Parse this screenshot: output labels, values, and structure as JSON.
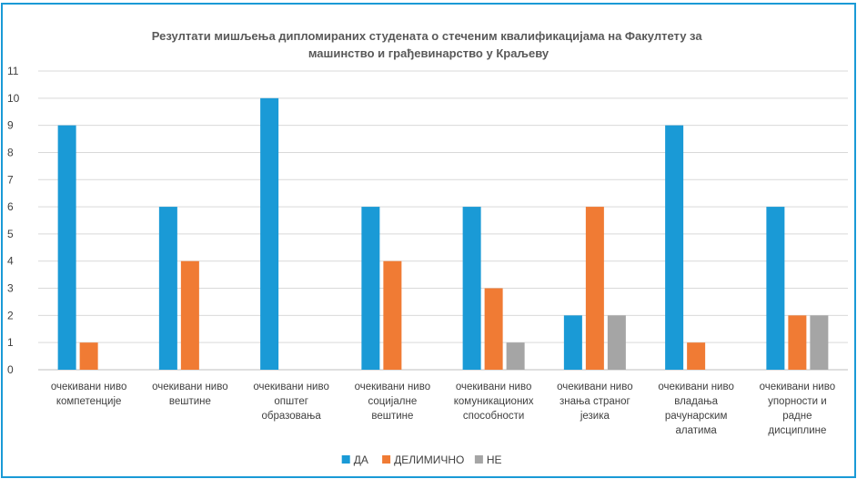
{
  "chart_data": {
    "type": "bar",
    "title": "Резултати мишљења дипломираних студената о стеченим квалификацијама на Факултету за машинство и грађевинарство у Краљеву",
    "title_lines": [
      "Резултати мишљења дипломираних студената о стеченим квалификацијама на Факултету за",
      "машинство и грађевинарство у Краљеву"
    ],
    "categories": [
      [
        "очекивани ниво",
        "компетенције"
      ],
      [
        "очекивани ниво",
        "вештине"
      ],
      [
        "очекивани ниво",
        "општег",
        "образовања"
      ],
      [
        "очекивани ниво",
        "социјалне",
        "вештине"
      ],
      [
        "очекивани ниво",
        "комуникационих",
        "способности"
      ],
      [
        "очекивани ниво",
        "знања страног",
        "језика"
      ],
      [
        "очекивани ниво",
        "владања",
        "рачунарским",
        "алатима"
      ],
      [
        "очекивани ниво",
        "упорности и",
        "радне",
        "дисциплине"
      ]
    ],
    "series": [
      {
        "name": "ДА",
        "color": "#1a9ad6",
        "values": [
          9,
          6,
          10,
          6,
          6,
          2,
          9,
          6
        ]
      },
      {
        "name": "ДЕЛИМИЧНО",
        "color": "#f07b34",
        "values": [
          1,
          4,
          0,
          4,
          3,
          6,
          1,
          2
        ]
      },
      {
        "name": "НЕ",
        "color": "#a5a5a5",
        "values": [
          0,
          0,
          0,
          0,
          1,
          2,
          0,
          2
        ]
      }
    ],
    "ylim": [
      0,
      11
    ],
    "yticks": [
      "0",
      "1",
      "2",
      "3",
      "4",
      "5",
      "6",
      "7",
      "8",
      "9",
      "10",
      "11"
    ],
    "grid": true,
    "legend_position": "bottom",
    "frame_color": "#1a9ad6",
    "grid_color": "#d9d9d9"
  }
}
